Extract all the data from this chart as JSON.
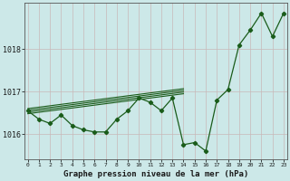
{
  "x": [
    0,
    1,
    2,
    3,
    4,
    5,
    6,
    7,
    8,
    9,
    10,
    11,
    12,
    13,
    14,
    15,
    16,
    17,
    18,
    19,
    20,
    21,
    22,
    23
  ],
  "pressure": [
    1016.55,
    1016.35,
    1016.25,
    1016.45,
    1016.2,
    1016.1,
    1016.05,
    1016.05,
    1016.35,
    1016.55,
    1016.85,
    1016.75,
    1016.55,
    1016.85,
    1015.75,
    1015.8,
    1015.6,
    1016.8,
    1017.05,
    1018.1,
    1018.45,
    1018.85,
    1018.3,
    1018.85
  ],
  "ylim": [
    1015.4,
    1019.1
  ],
  "yticks": [
    1016,
    1017,
    1018
  ],
  "xticks": [
    0,
    1,
    2,
    3,
    4,
    5,
    6,
    7,
    8,
    9,
    10,
    11,
    12,
    13,
    14,
    15,
    16,
    17,
    18,
    19,
    20,
    21,
    22,
    23
  ],
  "line_color": "#1a5c1a",
  "bg_color": "#cce8e8",
  "grid_color_v": "#c8b8b8",
  "grid_color_h": "#c8b8b8",
  "xlabel": "Graphe pression niveau de la mer (hPa)",
  "trend_lines": [
    {
      "x0": 0,
      "x1": 14,
      "y0": 1016.48,
      "y1": 1016.95
    },
    {
      "x0": 0,
      "x1": 14,
      "y0": 1016.52,
      "y1": 1016.99
    },
    {
      "x0": 0,
      "x1": 14,
      "y0": 1016.56,
      "y1": 1017.03
    },
    {
      "x0": 0,
      "x1": 14,
      "y0": 1016.6,
      "y1": 1017.07
    }
  ]
}
